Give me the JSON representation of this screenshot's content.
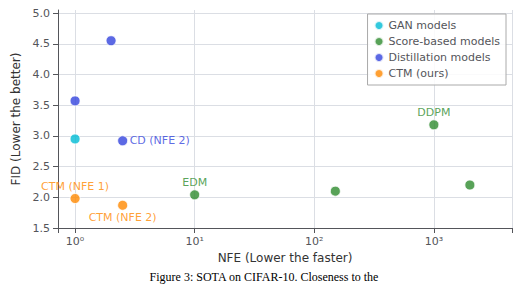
{
  "chart_data": {
    "type": "scatter",
    "xlabel": "NFE (Lower the faster)",
    "ylabel": "FID (Lower the better)",
    "caption": "Figure 3: SOTA on CIFAR-10. Closeness to the",
    "log": "x",
    "xlim": [
      0.72,
      4500
    ],
    "ylim": [
      1.5,
      5.05
    ],
    "xticks": [
      {
        "value": 1,
        "label": "10⁰"
      },
      {
        "value": 10,
        "label": "10¹"
      },
      {
        "value": 100,
        "label": "10²"
      },
      {
        "value": 1000,
        "label": "10³"
      }
    ],
    "yticks": [
      1.5,
      {
        "value": 2.0,
        "label": "2.0"
      },
      2.5,
      {
        "value": 3.0,
        "label": "3.0"
      },
      3.5,
      {
        "value": 4.0,
        "label": "4.0"
      },
      4.5,
      {
        "value": 5.0,
        "label": "5.0"
      }
    ],
    "grid": true,
    "legend": "upper right",
    "series": [
      {
        "name": "GAN models",
        "color": "#00bcd4",
        "x": [
          1.0
        ],
        "values": [
          2.95
        ]
      },
      {
        "name": "Score-based models",
        "color": "#2e8b2e",
        "x": [
          10.0,
          150,
          1000,
          2000
        ],
        "values": [
          2.04,
          2.1,
          3.18,
          2.2
        ]
      },
      {
        "name": "Distillation models",
        "color": "#3344dd",
        "x": [
          1.0,
          2.0,
          2.5
        ],
        "values": [
          3.57,
          4.55,
          2.92
        ]
      },
      {
        "name": "CTM (ours)",
        "color": "#ff8800",
        "x": [
          1.0,
          2.5
        ],
        "values": [
          1.98,
          1.87
        ]
      }
    ],
    "annotations": [
      {
        "text": "CD (NFE 2)",
        "x": 2.5,
        "y": 2.92,
        "color": "#3344dd"
      },
      {
        "text": "CTM (NFE 1)",
        "x": 1.0,
        "y": 1.98,
        "color": "#ff8800"
      },
      {
        "text": "CTM (NFE 2)",
        "x": 2.5,
        "y": 1.87,
        "color": "#ff8800"
      },
      {
        "text": "EDM",
        "x": 10.0,
        "y": 2.04,
        "color": "#2e8b2e"
      },
      {
        "text": "DDPM",
        "x": 1000,
        "y": 3.18,
        "color": "#2e8b2e"
      }
    ]
  }
}
